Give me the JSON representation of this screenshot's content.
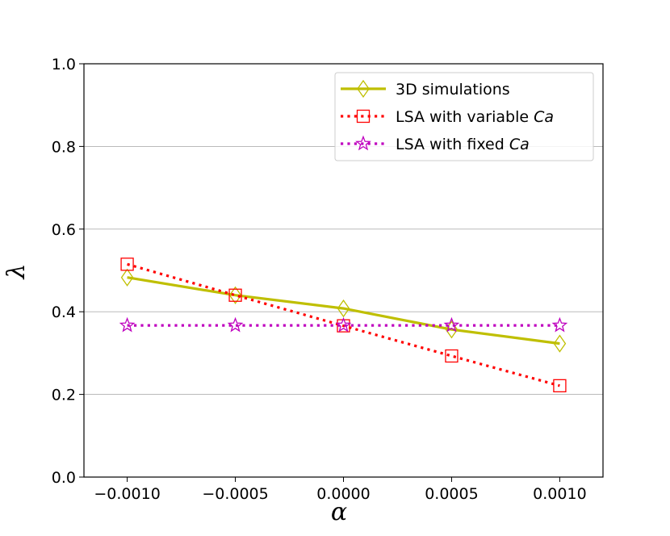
{
  "chart_data": {
    "type": "line",
    "x": [
      -0.001,
      -0.0005,
      0.0,
      0.0005,
      0.001
    ],
    "x_tick_labels": [
      "−0.0010",
      "−0.0005",
      "0.0000",
      "0.0005",
      "0.0010"
    ],
    "y_tick_labels": [
      "0.0",
      "0.2",
      "0.4",
      "0.6",
      "0.8",
      "1.0"
    ],
    "y_ticks": [
      0.0,
      0.2,
      0.4,
      0.6,
      0.8,
      1.0
    ],
    "xlim": [
      -0.0012,
      0.0012
    ],
    "ylim": [
      0.0,
      1.0
    ],
    "xlabel": "α",
    "ylabel": "λ",
    "grid": "horizontal",
    "legend_position": "top-right",
    "series": [
      {
        "name": "3D simulations",
        "name_parts": [
          "3D simulations",
          ""
        ],
        "values": [
          0.483,
          0.44,
          0.408,
          0.357,
          0.323
        ],
        "color": "#bfbf00",
        "line": "solid",
        "marker": "diamond"
      },
      {
        "name": "LSA with variable Ca",
        "name_parts": [
          "LSA with variable ",
          "Ca"
        ],
        "values": [
          0.515,
          0.44,
          0.366,
          0.293,
          0.221
        ],
        "color": "#ff0000",
        "line": "dotted",
        "marker": "square"
      },
      {
        "name": "LSA with fixed Ca",
        "name_parts": [
          "LSA with fixed ",
          "Ca"
        ],
        "values": [
          0.367,
          0.367,
          0.367,
          0.367,
          0.367
        ],
        "color": "#bf00bf",
        "line": "dotted",
        "marker": "star"
      }
    ]
  }
}
